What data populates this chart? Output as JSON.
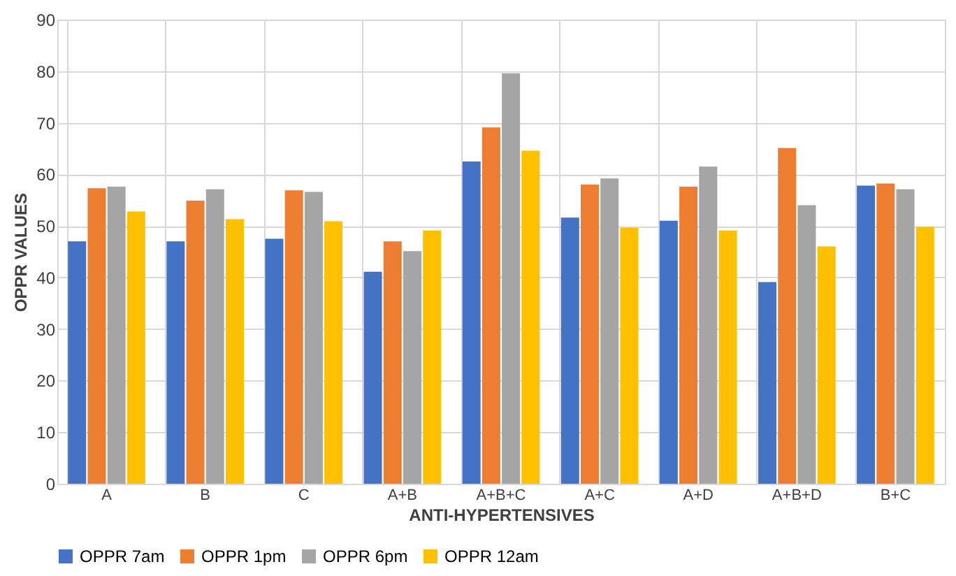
{
  "chart_data": {
    "type": "bar",
    "xlabel": "ANTI-HYPERTENSIVES",
    "ylabel": "OPPR VALUES",
    "categories": [
      "A",
      "B",
      "C",
      "A+B",
      "A+B+C",
      "A+C",
      "A+D",
      "A+B+D",
      "B+C"
    ],
    "series": [
      {
        "name": "OPPR 7am",
        "color": "#4472c4",
        "values": [
          47.0,
          47.0,
          47.5,
          41.1,
          62.5,
          51.6,
          51.0,
          39.1,
          57.8
        ]
      },
      {
        "name": "OPPR 1pm",
        "color": "#ed7d31",
        "values": [
          57.3,
          54.9,
          56.9,
          47.0,
          69.1,
          58.0,
          57.6,
          65.1,
          58.2
        ]
      },
      {
        "name": "OPPR 6pm",
        "color": "#a5a5a5",
        "values": [
          57.6,
          57.1,
          56.6,
          45.1,
          79.6,
          59.2,
          61.5,
          54.0,
          57.1
        ]
      },
      {
        "name": "OPPR 12am",
        "color": "#ffc000",
        "values": [
          52.8,
          51.3,
          50.9,
          49.1,
          64.6,
          49.6,
          49.1,
          46.0,
          49.8
        ]
      }
    ],
    "ylim": [
      0,
      90
    ],
    "yticks": [
      0,
      10,
      20,
      30,
      40,
      50,
      60,
      70,
      80,
      90
    ],
    "grid": true,
    "legend": "bottom"
  }
}
